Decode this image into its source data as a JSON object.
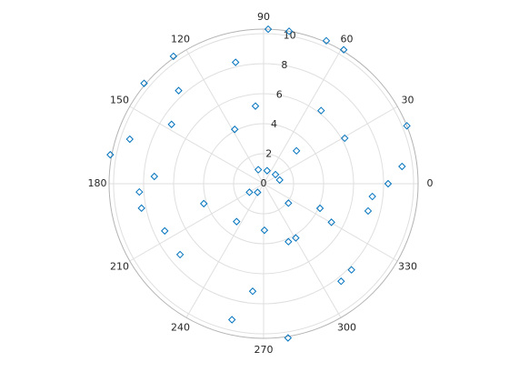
{
  "chart_data": {
    "type": "polarscatter",
    "color": "#0072bd",
    "grid": true,
    "rlim": [
      0,
      10.3
    ],
    "rticks": [
      0,
      2,
      4,
      6,
      8,
      10
    ],
    "thetaticks": [
      0,
      30,
      60,
      90,
      120,
      150,
      180,
      210,
      240,
      270,
      300,
      330
    ],
    "theta": [
      88.3,
      80.5,
      66.3,
      59.1,
      22,
      7.1,
      0,
      353.3,
      345.4,
      315.6,
      308.5,
      279,
      256.9,
      264.2,
      220.3,
      205.5,
      191.3,
      183.8,
      169.3,
      161.6,
      140,
      125.3,
      103,
      132.4,
      96,
      147.2,
      118,
      51.8,
      29.3,
      45,
      176.2,
      198.4,
      234.5,
      271,
      322,
      336.5,
      330.4,
      300.7,
      293.2,
      110.6,
      75,
      37.6,
      13,
      211,
      235
    ],
    "r": [
      10.3,
      10.3,
      10.4,
      10.4,
      10.3,
      9.3,
      8.3,
      7.3,
      7.2,
      8.2,
      8.3,
      10.4,
      9.3,
      7.2,
      7.3,
      7.3,
      8.3,
      8.3,
      10.4,
      9.4,
      10.4,
      10.4,
      8.3,
      8.4,
      5.2,
      7.3,
      4.1,
      6.2,
      6.2,
      3.1,
      7.3,
      4.2,
      3.1,
      3.1,
      2.1,
      4.1,
      5.2,
      4.2,
      4.2,
      1.0,
      0.9,
      1.0,
      1.1,
      1.1,
      0.7
    ]
  }
}
